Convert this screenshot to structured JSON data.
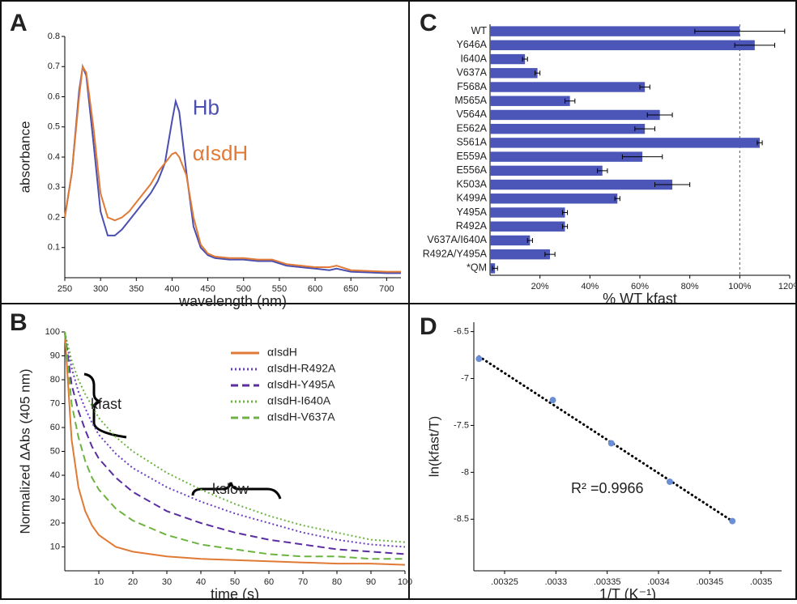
{
  "chart_data": [
    {
      "type": "line",
      "label": "A",
      "xlabel": "wavelength (nm)",
      "ylabel": "absorbance",
      "x": [
        250,
        260,
        270,
        275,
        280,
        290,
        300,
        310,
        320,
        330,
        340,
        350,
        360,
        370,
        380,
        390,
        400,
        405,
        410,
        420,
        430,
        440,
        450,
        460,
        480,
        500,
        520,
        540,
        560,
        580,
        600,
        620,
        630,
        650,
        700,
        720
      ],
      "series": [
        {
          "name": "Hb",
          "color": "#4a4fb0",
          "dash": "solid",
          "values": [
            0.2,
            0.35,
            0.62,
            0.7,
            0.67,
            0.45,
            0.22,
            0.14,
            0.14,
            0.16,
            0.19,
            0.22,
            0.25,
            0.28,
            0.32,
            0.38,
            0.52,
            0.585,
            0.55,
            0.35,
            0.17,
            0.1,
            0.075,
            0.065,
            0.06,
            0.06,
            0.055,
            0.055,
            0.04,
            0.035,
            0.03,
            0.025,
            0.03,
            0.02,
            0.015,
            0.015
          ]
        },
        {
          "name": "αIsdH",
          "color": "#e07a35",
          "dash": "solid",
          "values": [
            0.2,
            0.35,
            0.6,
            0.7,
            0.68,
            0.5,
            0.28,
            0.2,
            0.19,
            0.2,
            0.22,
            0.25,
            0.28,
            0.31,
            0.35,
            0.38,
            0.41,
            0.415,
            0.4,
            0.34,
            0.2,
            0.11,
            0.08,
            0.07,
            0.065,
            0.065,
            0.06,
            0.06,
            0.045,
            0.04,
            0.035,
            0.035,
            0.04,
            0.025,
            0.02,
            0.02
          ]
        }
      ],
      "legend": "inline",
      "xlim": [
        250,
        720
      ],
      "xticks": [
        250,
        300,
        350,
        400,
        450,
        500,
        550,
        600,
        650,
        700
      ],
      "ylim": [
        0,
        0.8
      ],
      "yticks": [
        0.1,
        0.2,
        0.3,
        0.4,
        0.5,
        0.6,
        0.7,
        0.8
      ]
    },
    {
      "type": "line",
      "label": "B",
      "xlabel": "time (s)",
      "ylabel": "Normalized ΔAbs (405 nm)",
      "x": [
        0,
        2,
        4,
        6,
        8,
        10,
        15,
        20,
        30,
        40,
        50,
        60,
        70,
        80,
        90,
        100
      ],
      "series": [
        {
          "name": "αIsdH",
          "color": "#e07a35",
          "dash": "solid",
          "values": [
            100,
            55,
            35,
            25,
            19,
            15,
            10,
            8,
            6,
            5,
            4.5,
            4,
            3.5,
            3,
            3,
            2.5
          ]
        },
        {
          "name": "αIsdH-R492A",
          "color": "#6a3fc0",
          "dash": "dotted",
          "values": [
            100,
            85,
            75,
            68,
            62,
            57,
            49,
            43,
            35,
            29,
            24,
            20,
            16,
            13,
            11,
            10
          ]
        },
        {
          "name": "αIsdH-Y495A",
          "color": "#5a2da0",
          "dash": "dashed",
          "values": [
            100,
            78,
            67,
            59,
            52,
            47,
            39,
            33,
            25,
            20,
            16,
            13,
            11,
            9,
            8,
            7
          ]
        },
        {
          "name": "αIsdH-I640A",
          "color": "#6cb33f",
          "dash": "dotted",
          "values": [
            100,
            88,
            80,
            74,
            69,
            64,
            56,
            50,
            41,
            34,
            28,
            23,
            19,
            16,
            13,
            12
          ]
        },
        {
          "name": "αIsdH-V637A",
          "color": "#6cb33f",
          "dash": "dashed",
          "values": [
            100,
            70,
            56,
            46,
            39,
            34,
            26,
            21,
            15,
            11,
            9,
            7,
            6,
            6,
            5,
            5
          ]
        }
      ],
      "legend": "upper right",
      "annotations": [
        "kfast",
        "kslow"
      ],
      "xlim": [
        0,
        100
      ],
      "xticks": [
        10,
        20,
        30,
        40,
        50,
        60,
        70,
        80,
        90,
        100
      ],
      "ylim": [
        0,
        100
      ],
      "yticks": [
        10,
        20,
        30,
        40,
        50,
        60,
        70,
        80,
        90,
        100
      ]
    },
    {
      "type": "bar",
      "label": "C",
      "orientation": "horizontal",
      "xlabel": "% WT kfast",
      "color": "#4b56b8",
      "categories": [
        "WT",
        "Y646A",
        "I640A",
        "V637A",
        "F568A",
        "M565A",
        "V564A",
        "E562A",
        "S561A",
        "E559A",
        "E556A",
        "K503A",
        "K499A",
        "Y495A",
        "R492A",
        "V637A/I640A",
        "R492A/Y495A",
        "*QM"
      ],
      "values": [
        100,
        106,
        14,
        19,
        62,
        32,
        68,
        62,
        108,
        61,
        45,
        73,
        51,
        30,
        30,
        16,
        24,
        2
      ],
      "errors": [
        18,
        8,
        1,
        1,
        2,
        2,
        5,
        4,
        1,
        8,
        2,
        7,
        1,
        1,
        1,
        1,
        2,
        1
      ],
      "reference_line": 100,
      "xlim": [
        0,
        120
      ],
      "xticks": [
        {
          "value": 20,
          "label": "20%"
        },
        {
          "value": 40,
          "label": "40%"
        },
        {
          "value": 60,
          "label": "60%"
        },
        {
          "value": 80,
          "label": "80%"
        },
        {
          "value": 100,
          "label": "100%"
        },
        {
          "value": 120,
          "label": "120%"
        }
      ]
    },
    {
      "type": "scatter",
      "label": "D",
      "xlabel": "1/T (K⁻¹)",
      "ylabel": "ln(kfast/T)",
      "color": "#6a8fd6",
      "x": [
        0.003225,
        0.003297,
        0.003354,
        0.003411,
        0.003472
      ],
      "values": [
        -6.79,
        -7.23,
        -7.69,
        -8.1,
        -8.52
      ],
      "trendline": true,
      "annotation": "R² =0.9966",
      "xlim": [
        0.00322,
        0.00352
      ],
      "xticks": [
        {
          "value": 0.00325,
          "label": ".00325"
        },
        {
          "value": 0.0033,
          "label": ".0033"
        },
        {
          "value": 0.00335,
          "label": ".00335"
        },
        {
          "value": 0.0034,
          "label": ".0034"
        },
        {
          "value": 0.00345,
          "label": ".00345"
        },
        {
          "value": 0.0035,
          "label": ".0035"
        }
      ],
      "ylim": [
        -9.05,
        -6.4
      ],
      "yticks": [
        -6.5,
        -7,
        -7.5,
        -8,
        -8.5
      ]
    }
  ]
}
